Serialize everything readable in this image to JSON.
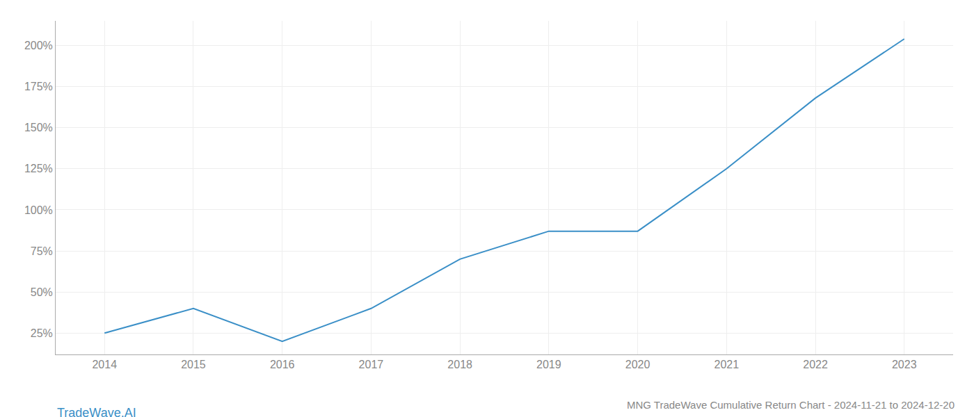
{
  "chart_data": {
    "type": "line",
    "title": "MNG TradeWave Cumulative Return Chart - 2024-11-21 to 2024-12-20",
    "annotations": [
      "TradeWave.AI"
    ],
    "x": [
      2014,
      2015,
      2016,
      2017,
      2018,
      2019,
      2020,
      2021,
      2022,
      2023
    ],
    "values": [
      25,
      40,
      20,
      40,
      70,
      87,
      87,
      125,
      168,
      204
    ],
    "color": "#3a8fc7",
    "xlim": [
      2013.45,
      2023.55
    ],
    "xticks": [
      2014,
      2015,
      2016,
      2017,
      2018,
      2019,
      2020,
      2021,
      2022,
      2023
    ],
    "ylim": [
      12,
      215
    ],
    "yticks": [
      {
        "value": 25,
        "label": "25%"
      },
      {
        "value": 50,
        "label": "50%"
      },
      {
        "value": 75,
        "label": "75%"
      },
      {
        "value": 100,
        "label": "100%"
      },
      {
        "value": 125,
        "label": "125%"
      },
      {
        "value": 150,
        "label": "150%"
      },
      {
        "value": 175,
        "label": "175%"
      },
      {
        "value": 200,
        "label": "200%"
      }
    ],
    "grid": true
  }
}
